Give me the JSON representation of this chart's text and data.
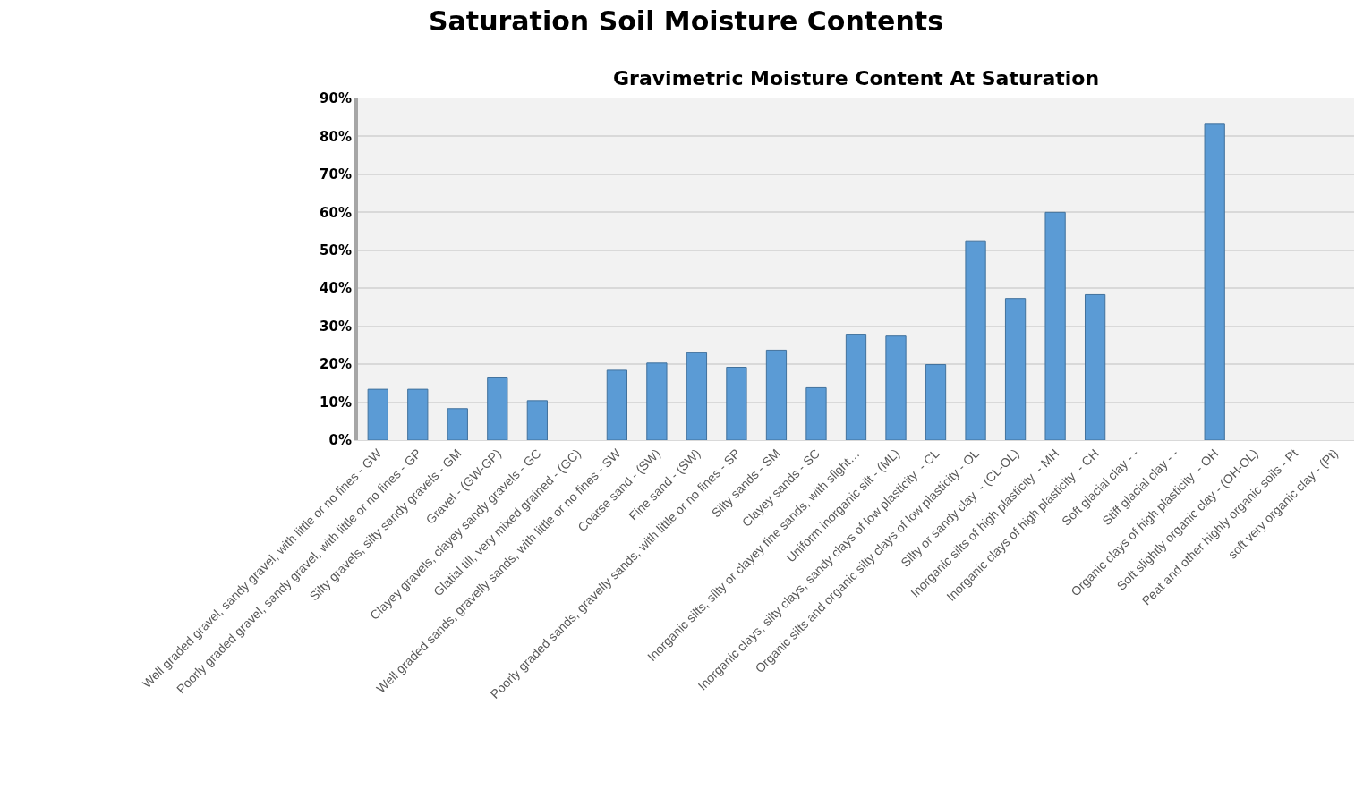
{
  "chart_data": {
    "type": "bar",
    "title": "Saturation Soil Moisture Contents",
    "subtitle": "Gravimetric Moisture Content At Saturation",
    "categories": [
      "Well graded gravel, sandy gravel, with little or no fines - GW",
      "Poorly graded gravel, sandy gravel, with little or no fines - GP",
      "Silty gravels, silty sandy gravels - GM",
      "Gravel - (GW-GP)",
      "Clayey gravels, clayey sandy gravels - GC",
      "Glatial till, very mixed grained - (GC)",
      "Well graded sands, gravelly sands, with little or no fines - SW",
      "Coarse sand - (SW)",
      "Fine sand - (SW)",
      "Poorly graded sands, gravelly sands, with little or no fines - SP",
      "Silty sands - SM",
      "Clayey sands - SC",
      "Inorganic silts, silty or clayey fine sands, with slight…",
      "Uniform inorganic silt - (ML)",
      "Inorganic clays, silty clays, sandy clays of low plasticity  - CL",
      "Organic silts and organic silty clays of low plasticity - OL",
      "Silty or sandy clay  - (CL-OL)",
      "Inorganic silts of high plasticity  - MH",
      "Inorganic clays of high plasticity  - CH",
      "Soft glacial clay - -",
      "Stiff glacial clay - -",
      "Organic clays of high plasticity  - OH",
      "Soft slightly organic clay - (OH-OL)",
      "Peat and other highly organic soils - Pt",
      "soft very organic clay - (Pt)"
    ],
    "values": [
      13.4,
      13.4,
      8.3,
      16.6,
      10.4,
      null,
      18.4,
      20.3,
      23.0,
      19.2,
      23.7,
      13.8,
      27.9,
      27.4,
      19.9,
      52.5,
      37.3,
      60.0,
      38.3,
      null,
      null,
      83.2,
      null,
      null,
      null
    ],
    "color": "#5b9bd5",
    "ylim": [
      0,
      90
    ],
    "yticks": [
      {
        "value": 0,
        "label": "0%"
      },
      {
        "value": 10,
        "label": "10%"
      },
      {
        "value": 20,
        "label": "20%"
      },
      {
        "value": 30,
        "label": "30%"
      },
      {
        "value": 40,
        "label": "40%"
      },
      {
        "value": 50,
        "label": "50%"
      },
      {
        "value": 60,
        "label": "60%"
      },
      {
        "value": 70,
        "label": "70%"
      },
      {
        "value": 80,
        "label": "80%"
      },
      {
        "value": 90,
        "label": "90%"
      }
    ],
    "grid": "y"
  }
}
